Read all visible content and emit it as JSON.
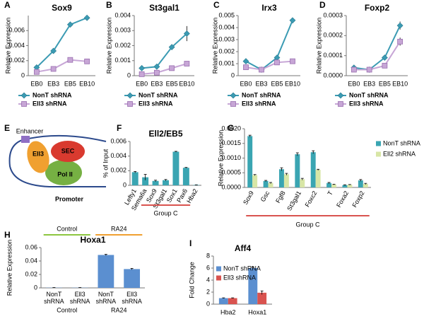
{
  "chart_data": [
    {
      "type": "line",
      "panel": "A",
      "title": "Sox9",
      "y_label": "Relative Expression",
      "categories": [
        "EB0",
        "EB3",
        "EB5",
        "EB10"
      ],
      "series": [
        {
          "name": "NonT shRNA",
          "color": "#3b9bb3",
          "marker": "diamond",
          "values": [
            0.0011,
            0.0033,
            0.0068,
            0.0077
          ],
          "errors": [
            0.0001,
            0.0002,
            0.0002,
            0.0003
          ]
        },
        {
          "name": "Ell3 shRNA",
          "color": "#c7a6d6",
          "marker": "square",
          "values": [
            0.0005,
            0.0009,
            0.0021,
            0.0019
          ],
          "errors": [
            5e-05,
            5e-05,
            0.0001,
            0.0001
          ]
        }
      ],
      "ylim": [
        0,
        0.008
      ],
      "yticks": [
        0,
        0.002,
        0.004,
        0.006
      ]
    },
    {
      "type": "line",
      "panel": "B",
      "title": "St3gal1",
      "y_label": "Relative Expression",
      "categories": [
        "EB0",
        "EB3",
        "EB5",
        "EB10"
      ],
      "series": [
        {
          "name": "NonT shRNA",
          "color": "#3b9bb3",
          "marker": "diamond",
          "values": [
            0.0005,
            0.0006,
            0.0019,
            0.0028
          ],
          "errors": [
            5e-05,
            5e-05,
            0.0001,
            0.0005
          ]
        },
        {
          "name": "Ell3 shRNA",
          "color": "#c7a6d6",
          "marker": "square",
          "values": [
            0.0001,
            0.0002,
            0.0005,
            0.0008
          ],
          "errors": [
            2e-05,
            2e-05,
            5e-05,
            5e-05
          ]
        }
      ],
      "ylim": [
        0,
        0.004
      ],
      "yticks": [
        0,
        0.001,
        0.002,
        0.003,
        0.004
      ]
    },
    {
      "type": "line",
      "panel": "C",
      "title": "Irx3",
      "y_label": "Relative Expression",
      "categories": [
        "EB0",
        "EB3",
        "EB5",
        "EB10"
      ],
      "series": [
        {
          "name": "NonT shRNA",
          "color": "#3b9bb3",
          "marker": "diamond",
          "values": [
            0.0012,
            0.0005,
            0.0015,
            0.0046
          ],
          "errors": [
            5e-05,
            5e-05,
            0.0001,
            0.0001
          ]
        },
        {
          "name": "Ell3 shRNA",
          "color": "#c7a6d6",
          "marker": "square",
          "values": [
            0.0007,
            0.0005,
            0.0011,
            0.0012
          ],
          "errors": [
            3e-05,
            3e-05,
            5e-05,
            5e-05
          ]
        }
      ],
      "ylim": [
        0,
        0.005
      ],
      "yticks": [
        0,
        0.001,
        0.002,
        0.003,
        0.004,
        0.005
      ]
    },
    {
      "type": "line",
      "panel": "D",
      "title": "Foxp2",
      "y_label": "Relative Expression",
      "categories": [
        "EB0",
        "EB3",
        "EB5",
        "EB10"
      ],
      "series": [
        {
          "name": "NonT shRNA",
          "color": "#3b9bb3",
          "marker": "diamond",
          "values": [
            4e-05,
            3e-05,
            9e-05,
            0.00025
          ],
          "errors": [
            3e-06,
            3e-06,
            5e-06,
            2e-05
          ]
        },
        {
          "name": "Ell3 shRNA",
          "color": "#c7a6d6",
          "marker": "square",
          "values": [
            3e-05,
            3e-05,
            5e-05,
            0.00017
          ],
          "errors": [
            3e-06,
            3e-06,
            5e-06,
            2e-05
          ]
        }
      ],
      "ylim": [
        0,
        0.0003
      ],
      "yticks": [
        {
          "value": 0,
          "label": "0.0000"
        },
        {
          "value": 0.0001,
          "label": "0.0001"
        },
        {
          "value": 0.0002,
          "label": "0.0002"
        },
        {
          "value": 0.0003,
          "label": "0.0003"
        }
      ]
    },
    {
      "type": "bar",
      "panel": "F",
      "title": "Ell2/EB5",
      "y_label": "% of Input",
      "group_label": "Group C",
      "categories": [
        "Lefty1",
        "Sema6a",
        "Sox9",
        "St3gal1",
        "Sox1",
        "Pax6",
        "Hba2"
      ],
      "series": [
        {
          "color": "#3aa5b2",
          "values": [
            0.0018,
            0.0011,
            0.0006,
            0.0007,
            0.0046,
            0.0024,
            5e-05
          ],
          "errors": [
            0.0001,
            0.0004,
            0.0001,
            0.0001,
            5e-05,
            5e-05,
            2e-05
          ]
        }
      ],
      "ylim": [
        0,
        0.006
      ],
      "yticks": [
        0,
        0.002,
        0.004,
        0.006
      ]
    },
    {
      "type": "bar",
      "panel": "G",
      "y_label": "Relative Expression",
      "group_label": "Group C",
      "categories": [
        "Sox9",
        "Gsc",
        "Fgf8",
        "St3gal1",
        "Foxc2",
        "T",
        "Foxa2",
        "Foxp2"
      ],
      "series": [
        {
          "name": "NonT shRNA",
          "color": "#3aa5b2",
          "values": [
            0.00175,
            0.00022,
            0.00062,
            0.00113,
            0.0012,
            0.00015,
            8e-05,
            0.00024
          ],
          "errors": [
            3e-05,
            2e-05,
            5e-05,
            5e-05,
            5e-05,
            2e-05,
            1e-05,
            3e-05
          ]
        },
        {
          "name": "Ell2 shRNA",
          "color": "#d8e6a6",
          "values": [
            0.00042,
            0.00015,
            0.00045,
            0.00028,
            0.0006,
            0.0001,
            9e-05,
            0.00012
          ],
          "errors": [
            2e-05,
            2e-05,
            3e-05,
            3e-05,
            2e-05,
            1e-05,
            1e-05,
            2e-05
          ]
        }
      ],
      "ylim": [
        0,
        0.002
      ],
      "yticks": [
        {
          "value": 0,
          "label": "0.0000"
        },
        {
          "value": 0.0005,
          "label": "0.0005"
        },
        {
          "value": 0.001,
          "label": "0.0010"
        },
        {
          "value": 0.0015,
          "label": "0.0015"
        },
        {
          "value": 0.002,
          "label": "0.0020"
        }
      ]
    },
    {
      "type": "bar",
      "panel": "H",
      "title": "Hoxa1",
      "y_label": "Relative Expression",
      "groups": [
        "Control",
        "RA24"
      ],
      "categories": [
        "NonT shRNA",
        "Ell3 shRNA",
        "NonT shRNA",
        "Ell3 shRNA"
      ],
      "series": [
        {
          "color": "#5b8fd0",
          "values": [
            0.0003,
            0.0003,
            0.049,
            0.028
          ],
          "errors": [
            0.0002,
            0.0002,
            0.001,
            0.001
          ]
        }
      ],
      "ylim": [
        0,
        0.06
      ],
      "yticks": [
        0,
        0.02,
        0.04,
        0.06
      ]
    },
    {
      "type": "bar",
      "panel": "I",
      "title": "Aff4",
      "y_label": "Fold Change",
      "categories": [
        "Hba2",
        "Hoxa1"
      ],
      "series": [
        {
          "name": "NonT shRNA",
          "color": "#5b8fd0",
          "values": [
            1,
            6
          ],
          "errors": [
            0.05,
            0.2
          ]
        },
        {
          "name": "Ell3 shRNA",
          "color": "#d9534f",
          "values": [
            1,
            1.9
          ],
          "errors": [
            0.05,
            0.3
          ]
        }
      ],
      "ylim": [
        0,
        8
      ],
      "yticks": [
        0,
        2,
        4,
        6,
        8
      ]
    }
  ],
  "diagram": {
    "panel": "E",
    "enhancer": "Enhancer",
    "ell3": "Ell3",
    "sec": "SEC",
    "pol2": "Pol II",
    "promoter": "Promoter"
  }
}
